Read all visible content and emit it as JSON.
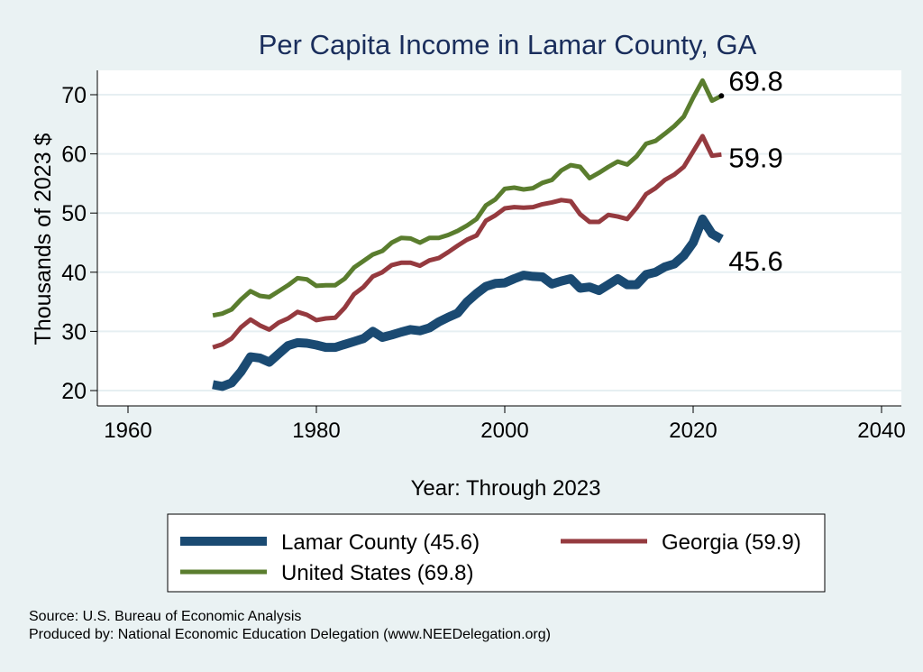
{
  "chart_data": {
    "type": "line",
    "title": "Per Capita Income in Lamar County, GA",
    "xlabel": "Year: Through 2023",
    "ylabel": "Thousands of 2023 $",
    "xlim": [
      1960,
      2040
    ],
    "ylim": [
      20,
      70
    ],
    "xticks": [
      1960,
      1980,
      2000,
      2020,
      2040
    ],
    "yticks": [
      20,
      30,
      40,
      50,
      60,
      70
    ],
    "grid": true,
    "legend_position": "bottom",
    "x": [
      1969,
      1970,
      1971,
      1972,
      1973,
      1974,
      1975,
      1976,
      1977,
      1978,
      1979,
      1980,
      1981,
      1982,
      1983,
      1984,
      1985,
      1986,
      1987,
      1988,
      1989,
      1990,
      1991,
      1992,
      1993,
      1994,
      1995,
      1996,
      1997,
      1998,
      1999,
      2000,
      2001,
      2002,
      2003,
      2004,
      2005,
      2006,
      2007,
      2008,
      2009,
      2010,
      2011,
      2012,
      2013,
      2014,
      2015,
      2016,
      2017,
      2018,
      2019,
      2020,
      2021,
      2022,
      2023
    ],
    "series": [
      {
        "name": "Lamar County (45.6)",
        "color": "#1a4a72",
        "end_label": "45.6",
        "values": [
          21.0,
          20.7,
          21.3,
          23.2,
          25.7,
          25.5,
          24.8,
          26.2,
          27.6,
          28.1,
          28.0,
          27.7,
          27.3,
          27.3,
          27.8,
          28.3,
          28.8,
          30.0,
          29.0,
          29.4,
          29.9,
          30.3,
          30.1,
          30.6,
          31.6,
          32.4,
          33.1,
          35.0,
          36.4,
          37.6,
          38.1,
          38.2,
          38.9,
          39.5,
          39.3,
          39.2,
          38.0,
          38.5,
          38.9,
          37.3,
          37.5,
          36.9,
          37.9,
          38.9,
          37.9,
          37.9,
          39.6,
          40.0,
          40.9,
          41.4,
          42.8,
          45.0,
          49.0,
          46.5,
          45.6
        ]
      },
      {
        "name": "Georgia (59.9)",
        "color": "#953a3f",
        "end_label": "59.9",
        "values": [
          27.3,
          27.8,
          28.8,
          30.7,
          32.0,
          31.0,
          30.3,
          31.5,
          32.2,
          33.3,
          32.8,
          31.9,
          32.2,
          32.3,
          34.0,
          36.3,
          37.5,
          39.3,
          40.0,
          41.2,
          41.6,
          41.6,
          41.1,
          42.0,
          42.4,
          43.4,
          44.5,
          45.5,
          46.2,
          48.7,
          49.6,
          50.8,
          51.0,
          50.9,
          51.0,
          51.5,
          51.8,
          52.2,
          52.0,
          49.8,
          48.5,
          48.5,
          49.7,
          49.4,
          49.0,
          50.9,
          53.2,
          54.2,
          55.6,
          56.5,
          57.8,
          60.4,
          63.0,
          59.7,
          59.9
        ]
      },
      {
        "name": "United States (69.8)",
        "color": "#5a7d2e",
        "end_label": "69.8",
        "values": [
          32.7,
          33.0,
          33.7,
          35.4,
          36.8,
          36.0,
          35.8,
          36.8,
          37.8,
          39.0,
          38.8,
          37.7,
          37.8,
          37.8,
          38.9,
          40.8,
          41.9,
          43.0,
          43.6,
          45.0,
          45.8,
          45.7,
          45.0,
          45.8,
          45.8,
          46.3,
          47.0,
          47.9,
          49.0,
          51.3,
          52.3,
          54.1,
          54.3,
          54.0,
          54.2,
          55.1,
          55.6,
          57.2,
          58.1,
          57.8,
          55.9,
          56.8,
          57.8,
          58.7,
          58.2,
          59.6,
          61.7,
          62.2,
          63.4,
          64.7,
          66.3,
          69.5,
          72.4,
          69.0,
          69.8
        ]
      }
    ],
    "title_color": "#1a2e5c"
  },
  "footer": {
    "source": "Source: U.S. Bureau of Economic Analysis",
    "produced": "Produced by: National Economic Education Delegation (www.NEEDelegation.org)"
  }
}
